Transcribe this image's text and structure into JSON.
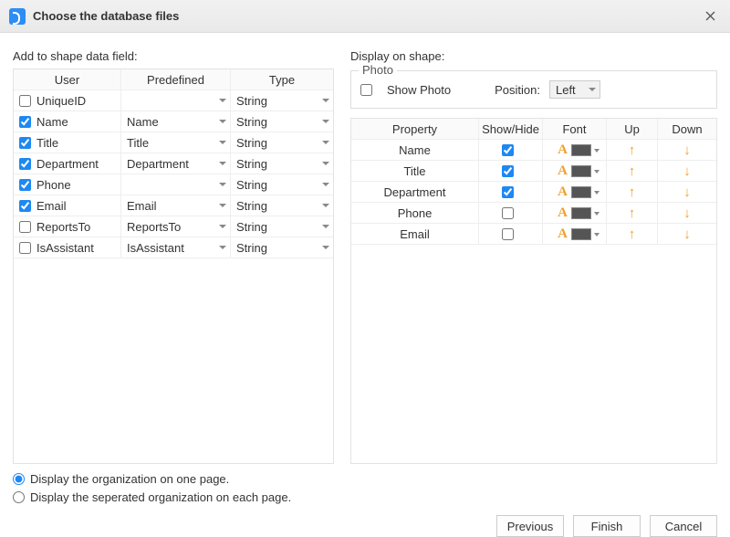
{
  "title": "Choose the database files",
  "left": {
    "label": "Add to shape data field:",
    "headers": {
      "user": "User",
      "predefined": "Predefined",
      "type": "Type"
    },
    "rows": [
      {
        "checked": false,
        "user": "UniqueID",
        "pre": "",
        "type": "String"
      },
      {
        "checked": true,
        "user": "Name",
        "pre": "Name",
        "type": "String"
      },
      {
        "checked": true,
        "user": "Title",
        "pre": "Title",
        "type": "String"
      },
      {
        "checked": true,
        "user": "Department",
        "pre": "Department",
        "type": "String"
      },
      {
        "checked": true,
        "user": "Phone",
        "pre": "",
        "type": "String"
      },
      {
        "checked": true,
        "user": "Email",
        "pre": "Email",
        "type": "String"
      },
      {
        "checked": false,
        "user": "ReportsTo",
        "pre": "ReportsTo",
        "type": "String"
      },
      {
        "checked": false,
        "user": "IsAssistant",
        "pre": "IsAssistant",
        "type": "String"
      }
    ]
  },
  "right": {
    "label": "Display on shape:",
    "photo": {
      "legend": "Photo",
      "show_label": "Show Photo",
      "show_checked": false,
      "position_label": "Position:",
      "position_value": "Left"
    },
    "headers": {
      "prop": "Property",
      "show": "Show/Hide",
      "font": "Font",
      "up": "Up",
      "down": "Down"
    },
    "rows": [
      {
        "prop": "Name",
        "show": true
      },
      {
        "prop": "Title",
        "show": true
      },
      {
        "prop": "Department",
        "show": true
      },
      {
        "prop": "Phone",
        "show": false
      },
      {
        "prop": "Email",
        "show": false
      }
    ]
  },
  "radios": {
    "selected": 0,
    "opt1": "Display the organization on one page.",
    "opt2": "Display the seperated organization on each page."
  },
  "buttons": {
    "prev": "Previous",
    "finish": "Finish",
    "cancel": "Cancel"
  },
  "colors": {
    "accent": "#1e88f2",
    "arrow": "#f0a030",
    "swatch": "#555555"
  }
}
